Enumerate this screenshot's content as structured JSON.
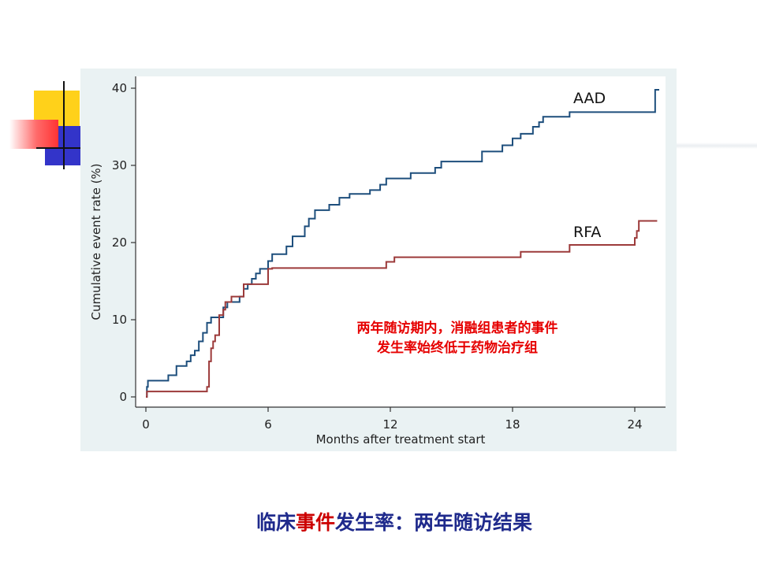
{
  "slide": {
    "title_parts": [
      {
        "text": "临床",
        "color": "#1f2a8c"
      },
      {
        "text": "事件",
        "color": "#cc0000"
      },
      {
        "text": "发生率",
        "color": "#1f2a8c"
      },
      {
        "text": "：两年随访结果",
        "color": "#1f2a8c"
      }
    ]
  },
  "annotation": {
    "line1": "两年随访期内，消融组患者的事件",
    "line2": "发生率始终低于药物治疗组",
    "color": "#e60000"
  },
  "decor": {
    "colors": {
      "yellow": "#ffd11a",
      "blue": "#3334c9",
      "red": "#ff3333",
      "lines": "#111111"
    }
  },
  "chart_data": {
    "type": "line",
    "step": true,
    "title": "",
    "xlabel": "Months after treatment start",
    "ylabel": "Cumulative event rate (%)",
    "xlim": [
      0,
      25.5
    ],
    "ylim": [
      0,
      40
    ],
    "xticks": [
      0,
      6,
      12,
      18,
      24
    ],
    "yticks": [
      0,
      10,
      20,
      30,
      40
    ],
    "grid": false,
    "legend": "inline labels at right end",
    "plot_background": "#eaf2f3",
    "series": [
      {
        "name": "AAD",
        "color": "#1d4e7c",
        "points": [
          [
            0,
            0
          ],
          [
            0.05,
            1.3
          ],
          [
            0.1,
            2.1
          ],
          [
            1.1,
            2.8
          ],
          [
            1.5,
            4.0
          ],
          [
            2.0,
            4.6
          ],
          [
            2.2,
            5.4
          ],
          [
            2.4,
            6.0
          ],
          [
            2.6,
            7.2
          ],
          [
            2.8,
            8.3
          ],
          [
            3.0,
            9.6
          ],
          [
            3.2,
            10.3
          ],
          [
            3.6,
            10.3
          ],
          [
            3.8,
            11.6
          ],
          [
            4.0,
            12.3
          ],
          [
            4.6,
            13.0
          ],
          [
            4.8,
            14.0
          ],
          [
            5.0,
            14.6
          ],
          [
            5.2,
            15.3
          ],
          [
            5.4,
            16.0
          ],
          [
            5.6,
            16.6
          ],
          [
            6.0,
            17.6
          ],
          [
            6.2,
            18.5
          ],
          [
            6.9,
            19.5
          ],
          [
            7.2,
            20.8
          ],
          [
            7.8,
            22.1
          ],
          [
            8.0,
            23.1
          ],
          [
            8.3,
            24.2
          ],
          [
            9.0,
            24.9
          ],
          [
            9.5,
            25.8
          ],
          [
            10.0,
            26.3
          ],
          [
            11.0,
            26.8
          ],
          [
            11.5,
            27.5
          ],
          [
            11.8,
            28.3
          ],
          [
            13.0,
            29.0
          ],
          [
            14.2,
            29.7
          ],
          [
            14.5,
            30.5
          ],
          [
            16.5,
            31.8
          ],
          [
            17.5,
            32.6
          ],
          [
            18.0,
            33.5
          ],
          [
            18.4,
            34.1
          ],
          [
            19.0,
            35.0
          ],
          [
            19.3,
            35.6
          ],
          [
            19.5,
            36.3
          ],
          [
            20.8,
            36.9
          ],
          [
            24.6,
            36.9
          ],
          [
            25.0,
            39.8
          ],
          [
            25.2,
            39.8
          ]
        ]
      },
      {
        "name": "RFA",
        "color": "#9c3a3a",
        "points": [
          [
            0,
            0
          ],
          [
            0.05,
            0.7
          ],
          [
            2.6,
            0.7
          ],
          [
            3.0,
            1.3
          ],
          [
            3.1,
            4.6
          ],
          [
            3.2,
            6.3
          ],
          [
            3.3,
            7.2
          ],
          [
            3.4,
            8.0
          ],
          [
            3.5,
            8.0
          ],
          [
            3.6,
            10.6
          ],
          [
            3.8,
            11.3
          ],
          [
            3.9,
            12.3
          ],
          [
            4.2,
            13.0
          ],
          [
            4.8,
            14.6
          ],
          [
            6.0,
            16.6
          ],
          [
            6.2,
            16.7
          ],
          [
            11.6,
            16.7
          ],
          [
            11.8,
            17.5
          ],
          [
            12.2,
            18.1
          ],
          [
            18.4,
            18.8
          ],
          [
            20.8,
            19.7
          ],
          [
            23.9,
            19.7
          ],
          [
            24.0,
            20.6
          ],
          [
            24.1,
            21.5
          ],
          [
            24.2,
            22.8
          ],
          [
            25.1,
            22.8
          ]
        ]
      }
    ]
  }
}
